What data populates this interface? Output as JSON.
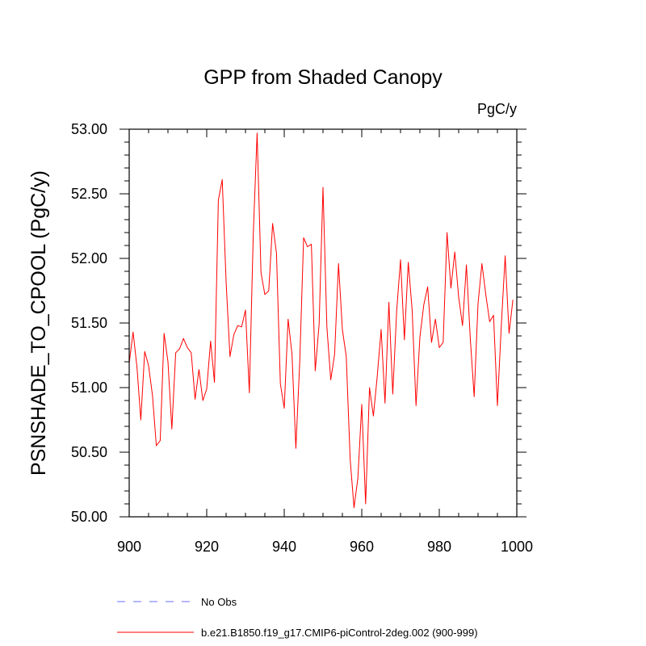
{
  "chart_data": {
    "type": "line",
    "title": "GPP from Shaded Canopy",
    "units": "PgC/y",
    "xlabel": "",
    "ylabel": "PSNSHADE_TO_CPOOL  (PgC/y)",
    "xlim": [
      900,
      1000
    ],
    "ylim": [
      50.0,
      53.0
    ],
    "xticks": [
      900,
      920,
      940,
      960,
      980,
      1000
    ],
    "xtick_labels": [
      "900",
      "920",
      "940",
      "960",
      "980",
      "1000"
    ],
    "yticks": [
      50.0,
      50.5,
      51.0,
      51.5,
      52.0,
      52.5,
      53.0
    ],
    "ytick_labels": [
      "50.00",
      "50.50",
      "51.00",
      "51.50",
      "52.00",
      "52.50",
      "53.00"
    ],
    "grid": false,
    "legend_position": "bottom-left",
    "series": [
      {
        "name": "b.e21.B1850.f19_g17.CMIP6-piControl-2deg.002 (900-999)",
        "color": "#ff0000",
        "style": "solid",
        "x": [
          900,
          901,
          902,
          903,
          904,
          905,
          906,
          907,
          908,
          909,
          910,
          911,
          912,
          913,
          914,
          915,
          916,
          917,
          918,
          919,
          920,
          921,
          922,
          923,
          924,
          925,
          926,
          927,
          928,
          929,
          930,
          931,
          932,
          933,
          934,
          935,
          936,
          937,
          938,
          939,
          940,
          941,
          942,
          943,
          944,
          945,
          946,
          947,
          948,
          949,
          950,
          951,
          952,
          953,
          954,
          955,
          956,
          957,
          958,
          959,
          960,
          961,
          962,
          963,
          964,
          965,
          966,
          967,
          968,
          969,
          970,
          971,
          972,
          973,
          974,
          975,
          976,
          977,
          978,
          979,
          980,
          981,
          982,
          983,
          984,
          985,
          986,
          987,
          988,
          989,
          990,
          991,
          992,
          993,
          994,
          995,
          996,
          997,
          998,
          999
        ],
        "values": [
          51.19,
          51.43,
          51.16,
          50.75,
          51.28,
          51.17,
          50.94,
          50.55,
          50.59,
          51.42,
          51.2,
          50.68,
          51.27,
          51.3,
          51.38,
          51.31,
          51.27,
          50.91,
          51.14,
          50.9,
          50.99,
          51.36,
          51.04,
          52.45,
          52.61,
          51.82,
          51.24,
          51.41,
          51.48,
          51.47,
          51.6,
          50.96,
          52.18,
          52.97,
          51.89,
          51.72,
          51.75,
          52.27,
          52.04,
          51.03,
          50.84,
          51.53,
          51.26,
          50.53,
          51.2,
          52.16,
          52.09,
          52.11,
          51.13,
          51.49,
          52.55,
          51.47,
          51.06,
          51.26,
          51.96,
          51.45,
          51.24,
          50.45,
          50.07,
          50.3,
          50.87,
          50.1,
          51.0,
          50.78,
          51.09,
          51.45,
          50.88,
          51.66,
          50.95,
          51.59,
          51.99,
          51.37,
          51.97,
          51.6,
          50.86,
          51.39,
          51.64,
          51.78,
          51.35,
          51.53,
          51.31,
          51.35,
          52.2,
          51.77,
          52.05,
          51.7,
          51.48,
          51.95,
          51.38,
          50.93,
          51.65,
          51.96,
          51.72,
          51.51,
          51.56,
          50.86,
          51.48,
          52.02,
          51.42,
          51.68
        ]
      },
      {
        "name": "No Obs",
        "color": "#0000ff",
        "style": "dashed",
        "values": []
      }
    ]
  }
}
